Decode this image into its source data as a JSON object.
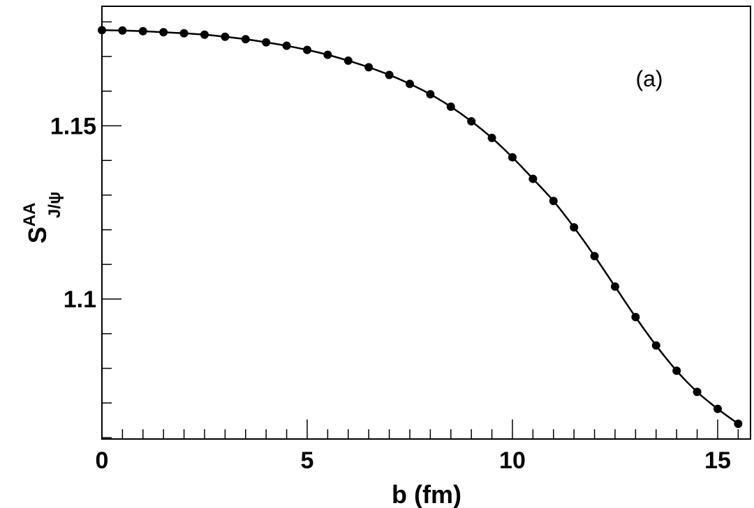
{
  "chart_data": {
    "type": "line",
    "title": "",
    "annotation": "(a)",
    "xlabel": "b (fm)",
    "ylabel": {
      "main": "S",
      "superscript": "AA",
      "subscript": "J/ψ"
    },
    "xlim": [
      0,
      15.8
    ],
    "ylim": [
      1.0596,
      1.1845
    ],
    "x_major_ticks": [
      0,
      5,
      10,
      15
    ],
    "x_tick_labels": [
      "0",
      "5",
      "10",
      "15"
    ],
    "x_minor_step": 0.5,
    "y_major_ticks": [
      1.1,
      1.15
    ],
    "y_tick_labels": [
      "1.1",
      "1.15"
    ],
    "y_minor_step": 0.01,
    "grid": false,
    "series": [
      {
        "marker": "filled-circle",
        "color": "#000000",
        "x": [
          0,
          0.5,
          1,
          1.5,
          2,
          2.5,
          3,
          3.5,
          4,
          4.5,
          5,
          5.5,
          6,
          6.5,
          7,
          7.5,
          8,
          8.5,
          9,
          9.5,
          10,
          10.5,
          11,
          11.5,
          12,
          12.5,
          13,
          13.5,
          14,
          14.5,
          15,
          15.5
        ],
        "y": [
          1.1776,
          1.1775,
          1.1773,
          1.177,
          1.1767,
          1.1763,
          1.1757,
          1.175,
          1.1741,
          1.1731,
          1.1719,
          1.1705,
          1.1688,
          1.1669,
          1.1647,
          1.1621,
          1.1591,
          1.1555,
          1.1513,
          1.1465,
          1.1409,
          1.1347,
          1.1283,
          1.1207,
          1.1124,
          1.1036,
          1.0948,
          1.0866,
          1.0793,
          1.0732,
          1.0683,
          1.064
        ]
      }
    ]
  }
}
